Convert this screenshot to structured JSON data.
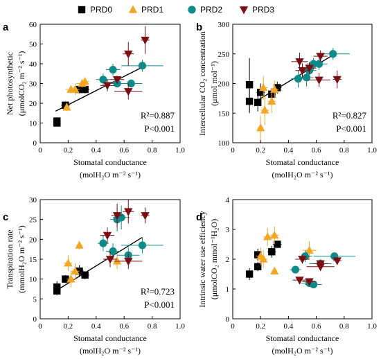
{
  "legend": [
    {
      "label": "PRD0",
      "marker": "square",
      "color": "#000000"
    },
    {
      "label": "PRD1",
      "marker": "triangle-up",
      "color": "#f5a623"
    },
    {
      "label": "PRD2",
      "marker": "circle",
      "color": "#0f8a8a"
    },
    {
      "label": "PRD3",
      "marker": "triangle-down",
      "color": "#7a0e12"
    }
  ],
  "chart_data": [
    {
      "type": "scatter",
      "panel": "a",
      "ylabel_lines": [
        "Net photosynthetic",
        "(μmolCO₂ m⁻² s⁻¹)"
      ],
      "xlabel_lines": [
        "Stomatal conductance",
        "(molH₂O m⁻² s⁻¹)"
      ],
      "xlim": [
        0,
        1.0
      ],
      "ylim": [
        0,
        60
      ],
      "xticks": [
        "0",
        "0.2",
        "0.4",
        "0.6",
        "0.8",
        "1.0"
      ],
      "yticks": [
        "0",
        "10",
        "20",
        "30",
        "40",
        "50",
        "60"
      ],
      "r2": "R²=0.887",
      "p": "P<0.001",
      "fit": {
        "x": [
          0.11,
          0.75
        ],
        "y": [
          16,
          39
        ]
      },
      "series": [
        {
          "name": "PRD0",
          "points": [
            [
              0.12,
              11,
              0,
              2
            ],
            [
              0.12,
              10,
              0,
              1.5
            ],
            [
              0.18,
              19,
              0.03,
              2
            ],
            [
              0.28,
              27,
              0.02,
              2
            ],
            [
              0.32,
              27,
              0.03,
              2
            ]
          ]
        },
        {
          "name": "PRD1",
          "points": [
            [
              0.19,
              18,
              0.02,
              2
            ],
            [
              0.22,
              27,
              0.04,
              2
            ],
            [
              0.25,
              27,
              0.03,
              3
            ],
            [
              0.3,
              30,
              0.04,
              2
            ],
            [
              0.32,
              31,
              0.03,
              2
            ]
          ]
        },
        {
          "name": "PRD2",
          "points": [
            [
              0.45,
              32,
              0.05,
              3
            ],
            [
              0.52,
              37,
              0.05,
              3
            ],
            [
              0.55,
              30,
              0.08,
              2
            ],
            [
              0.65,
              30,
              0.08,
              2
            ],
            [
              0.73,
              39,
              0.15,
              3
            ]
          ]
        },
        {
          "name": "PRD3",
          "points": [
            [
              0.48,
              29,
              0.05,
              3
            ],
            [
              0.55,
              32,
              0.05,
              2
            ],
            [
              0.63,
              26,
              0.1,
              4
            ],
            [
              0.63,
              45,
              0.04,
              6
            ],
            [
              0.75,
              52,
              0.03,
              7
            ]
          ]
        }
      ]
    },
    {
      "type": "scatter",
      "panel": "b",
      "ylabel_lines": [
        "Intercellular CO₂ concentration",
        "(μmol mol⁻¹)"
      ],
      "xlabel_lines": [
        "Stomatal conductance",
        "(molH₂O m⁻² s⁻¹)"
      ],
      "xlim": [
        0,
        1.0
      ],
      "ylim": [
        100,
        300
      ],
      "xticks": [
        "0",
        "0.2",
        "0.4",
        "0.6",
        "0.8",
        "1.0"
      ],
      "yticks": [
        "100",
        "150",
        "200",
        "250",
        "300"
      ],
      "r2": "R²=0.827",
      "p": "P<0.001",
      "fit": {
        "x": [
          0.18,
          0.72
        ],
        "y": [
          172,
          248
        ]
      },
      "series": [
        {
          "name": "PRD0",
          "points": [
            [
              0.12,
              198,
              0.02,
              45
            ],
            [
              0.12,
              170,
              0.02,
              20
            ],
            [
              0.18,
              168,
              0.02,
              15
            ],
            [
              0.2,
              185,
              0.03,
              15
            ],
            [
              0.28,
              182,
              0.03,
              10
            ],
            [
              0.32,
              193,
              0.03,
              10
            ]
          ]
        },
        {
          "name": "PRD1",
          "points": [
            [
              0.2,
              125,
              0.02,
              20
            ],
            [
              0.22,
              193,
              0.03,
              20
            ],
            [
              0.23,
              155,
              0.03,
              25
            ],
            [
              0.28,
              170,
              0.03,
              20
            ],
            [
              0.3,
              190,
              0.03,
              15
            ]
          ]
        },
        {
          "name": "PRD2",
          "points": [
            [
              0.47,
              208,
              0.05,
              15
            ],
            [
              0.53,
              210,
              0.05,
              15
            ],
            [
              0.55,
              222,
              0.05,
              12
            ],
            [
              0.58,
              233,
              0.05,
              10
            ],
            [
              0.62,
              233,
              0.06,
              10
            ],
            [
              0.72,
              250,
              0.12,
              10
            ]
          ]
        },
        {
          "name": "PRD3",
          "points": [
            [
              0.48,
              237,
              0.06,
              15
            ],
            [
              0.5,
              222,
              0.05,
              12
            ],
            [
              0.55,
              226,
              0.05,
              10
            ],
            [
              0.62,
              206,
              0.08,
              12
            ],
            [
              0.63,
              246,
              0.05,
              10
            ],
            [
              0.75,
              207,
              0.03,
              15
            ]
          ]
        }
      ]
    },
    {
      "type": "scatter",
      "panel": "c",
      "ylabel_lines": [
        "Transpiration rate",
        "(mmolH₂O m⁻² s⁻¹)"
      ],
      "xlabel_lines": [
        "Stomatal conductance",
        "(molH₂O m⁻² s⁻¹)"
      ],
      "xlim": [
        0,
        1.0
      ],
      "ylim": [
        0,
        30
      ],
      "xticks": [
        "0",
        "0.2",
        "0.4",
        "0.6",
        "0.8",
        "1.0"
      ],
      "yticks": [
        "0",
        "5",
        "10",
        "15",
        "20",
        "25",
        "30"
      ],
      "r2": "R²=0.723",
      "p": "P<0.001",
      "fit": {
        "x": [
          0.11,
          0.73
        ],
        "y": [
          7,
          20.5
        ]
      },
      "series": [
        {
          "name": "PRD0",
          "points": [
            [
              0.12,
              8,
              0,
              1.5
            ],
            [
              0.12,
              7,
              0,
              1
            ],
            [
              0.18,
              10,
              0.02,
              1
            ],
            [
              0.28,
              12,
              0.03,
              1.5
            ],
            [
              0.32,
              11,
              0.03,
              1
            ]
          ]
        },
        {
          "name": "PRD1",
          "points": [
            [
              0.2,
              14,
              0.03,
              2
            ],
            [
              0.22,
              10,
              0.03,
              2
            ],
            [
              0.25,
              12,
              0.03,
              2
            ],
            [
              0.28,
              18.5,
              0.02,
              1
            ],
            [
              0.55,
              14.5,
              0.05,
              2
            ]
          ]
        },
        {
          "name": "PRD2",
          "points": [
            [
              0.45,
              19,
              0.04,
              2
            ],
            [
              0.52,
              17,
              0.05,
              2
            ],
            [
              0.55,
              25,
              0.05,
              3
            ],
            [
              0.58,
              25.5,
              0.06,
              3
            ],
            [
              0.63,
              16,
              0.08,
              2
            ],
            [
              0.73,
              18.5,
              0.15,
              2
            ]
          ]
        },
        {
          "name": "PRD3",
          "points": [
            [
              0.48,
              21,
              0.05,
              2
            ],
            [
              0.5,
              15,
              0.05,
              2
            ],
            [
              0.55,
              26,
              0.04,
              3
            ],
            [
              0.63,
              27,
              0.04,
              3
            ],
            [
              0.63,
              14.5,
              0.1,
              2
            ],
            [
              0.75,
              26,
              0.03,
              2
            ]
          ]
        }
      ]
    },
    {
      "type": "scatter",
      "panel": "d",
      "ylabel_lines": [
        "Intrinsic water use efficiency",
        "(μmolCO₂ mmol⁻¹H₂O)"
      ],
      "xlabel_lines": [
        "Stomatal conductance",
        "(molH₂O m⁻² s⁻¹)"
      ],
      "xlim": [
        0,
        1.0
      ],
      "ylim": [
        0,
        4
      ],
      "xticks": [
        "0",
        "0.2",
        "0.4",
        "0.6",
        "0.8",
        "1.0"
      ],
      "yticks": [
        "0",
        "1",
        "2",
        "3",
        "4"
      ],
      "r2": "",
      "p": "",
      "fit": null,
      "series": [
        {
          "name": "PRD0",
          "points": [
            [
              0.12,
              1.5,
              0,
              0.2
            ],
            [
              0.18,
              1.75,
              0.02,
              0.15
            ],
            [
              0.18,
              2.15,
              0.02,
              0.2
            ],
            [
              0.28,
              2.25,
              0.03,
              0.2
            ],
            [
              0.32,
              2.5,
              0.03,
              0.1
            ]
          ]
        },
        {
          "name": "PRD1",
          "points": [
            [
              0.2,
              2.1,
              0.03,
              0.3
            ],
            [
              0.22,
              2.0,
              0.03,
              0.3
            ],
            [
              0.25,
              2.75,
              0.03,
              0.3
            ],
            [
              0.3,
              2.8,
              0.03,
              0.3
            ],
            [
              0.3,
              1.6,
              0.02,
              0.1
            ],
            [
              0.55,
              2.3,
              0.05,
              0.3
            ]
          ]
        },
        {
          "name": "PRD2",
          "points": [
            [
              0.45,
              1.65,
              0.04,
              0.1
            ],
            [
              0.52,
              2.1,
              0.05,
              0.2
            ],
            [
              0.55,
              1.2,
              0.06,
              0.1
            ],
            [
              0.58,
              1.15,
              0.06,
              0.1
            ],
            [
              0.63,
              1.85,
              0.08,
              0.15
            ],
            [
              0.73,
              2.1,
              0.15,
              0.1
            ]
          ]
        },
        {
          "name": "PRD3",
          "points": [
            [
              0.48,
              1.3,
              0.05,
              0.1
            ],
            [
              0.5,
              2.0,
              0.05,
              0.15
            ],
            [
              0.55,
              1.25,
              0.05,
              0.1
            ],
            [
              0.63,
              1.75,
              0.1,
              0.15
            ],
            [
              0.63,
              1.85,
              0.05,
              0.1
            ],
            [
              0.75,
              1.95,
              0.03,
              0.1
            ]
          ]
        }
      ]
    }
  ]
}
